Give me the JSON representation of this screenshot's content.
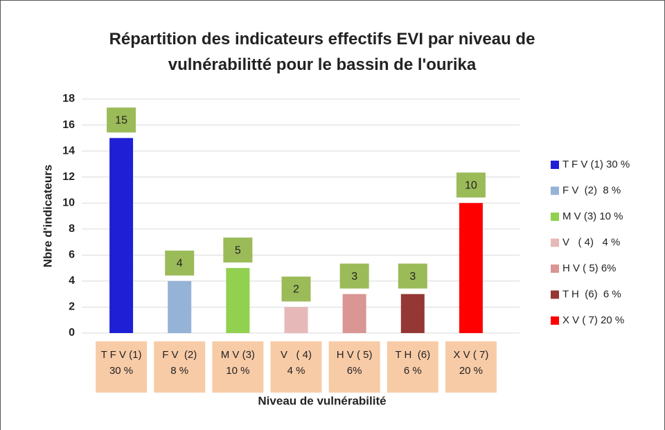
{
  "chart_data": {
    "type": "bar",
    "title": "Répartition des indicateurs effectifs EVI par niveau de vulnérabilitté pour le bassin de l'ourika",
    "x_label": "Niveau de vulnérabilité",
    "y_label": "Nbre d'indicateurs",
    "categories": [
      "T F V (1)\n30 %",
      "F V  (2)\n8 %",
      "M V (3)\n10 %",
      "V   ( 4)\n4 %",
      "H V ( 5)\n6%",
      "T H  (6)\n6 %",
      "X V ( 7)\n20 %"
    ],
    "series": [
      {
        "name": "T F V (1) 30 %",
        "color": "#1f1fd6",
        "values": [
          15,
          null,
          null,
          null,
          null,
          null,
          null
        ]
      },
      {
        "name": "F V  (2)  8 %",
        "color": "#95b3d7",
        "values": [
          null,
          4,
          null,
          null,
          null,
          null,
          null
        ]
      },
      {
        "name": "M V (3) 10 %",
        "color": "#92d050",
        "values": [
          null,
          null,
          5,
          null,
          null,
          null,
          null
        ]
      },
      {
        "name": "V   ( 4)   4 %",
        "color": "#e6b9b8",
        "values": [
          null,
          null,
          null,
          2,
          null,
          null,
          null
        ]
      },
      {
        "name": "H V ( 5) 6%",
        "color": "#d99694",
        "values": [
          null,
          null,
          null,
          null,
          3,
          null,
          null
        ]
      },
      {
        "name": "T H  (6)  6 %",
        "color": "#953735",
        "values": [
          null,
          null,
          null,
          null,
          null,
          3,
          null
        ]
      },
      {
        "name": "X V ( 7) 20 %",
        "color": "#ff0000",
        "values": [
          null,
          null,
          null,
          null,
          null,
          null,
          10
        ]
      }
    ],
    "ylim": [
      0,
      18
    ],
    "yticks": [
      0,
      2,
      4,
      6,
      8,
      10,
      12,
      14,
      16,
      18
    ],
    "grid": true,
    "legend": "right"
  }
}
